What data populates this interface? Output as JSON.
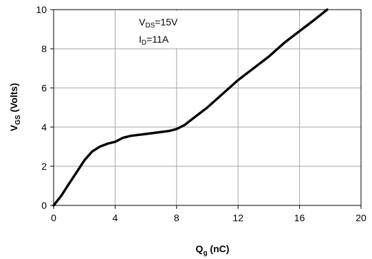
{
  "chart_data": {
    "type": "line",
    "title": "",
    "xlabel": {
      "main": "Q",
      "sub": "g",
      "unit": " (nC)"
    },
    "ylabel": {
      "main": "V",
      "sub": "GS",
      "unit": " (Volts)"
    },
    "xlim": [
      0,
      20
    ],
    "ylim": [
      0,
      10
    ],
    "xticks": [
      "0",
      "4",
      "8",
      "12",
      "16",
      "20"
    ],
    "yticks": [
      "0",
      "2",
      "4",
      "6",
      "8",
      "10"
    ],
    "grid": true,
    "annotations": [
      {
        "main": "V",
        "sub": "DS",
        "rest": "=15V"
      },
      {
        "main": "I",
        "sub": "D",
        "rest": "=11A"
      }
    ],
    "series": [
      {
        "color": "#000000",
        "x": [
          0,
          0.5,
          1.0,
          1.5,
          2.0,
          2.5,
          3.0,
          3.5,
          4.0,
          4.5,
          5.0,
          6.0,
          7.0,
          7.5,
          8.0,
          8.5,
          9.0,
          10.0,
          11.0,
          12.0,
          13.0,
          14.0,
          15.0,
          16.0,
          17.0,
          17.8
        ],
        "y": [
          0,
          0.5,
          1.1,
          1.7,
          2.3,
          2.75,
          3.0,
          3.15,
          3.25,
          3.45,
          3.55,
          3.65,
          3.75,
          3.8,
          3.9,
          4.1,
          4.4,
          5.0,
          5.7,
          6.4,
          7.0,
          7.6,
          8.3,
          8.9,
          9.5,
          10.0
        ]
      }
    ]
  }
}
